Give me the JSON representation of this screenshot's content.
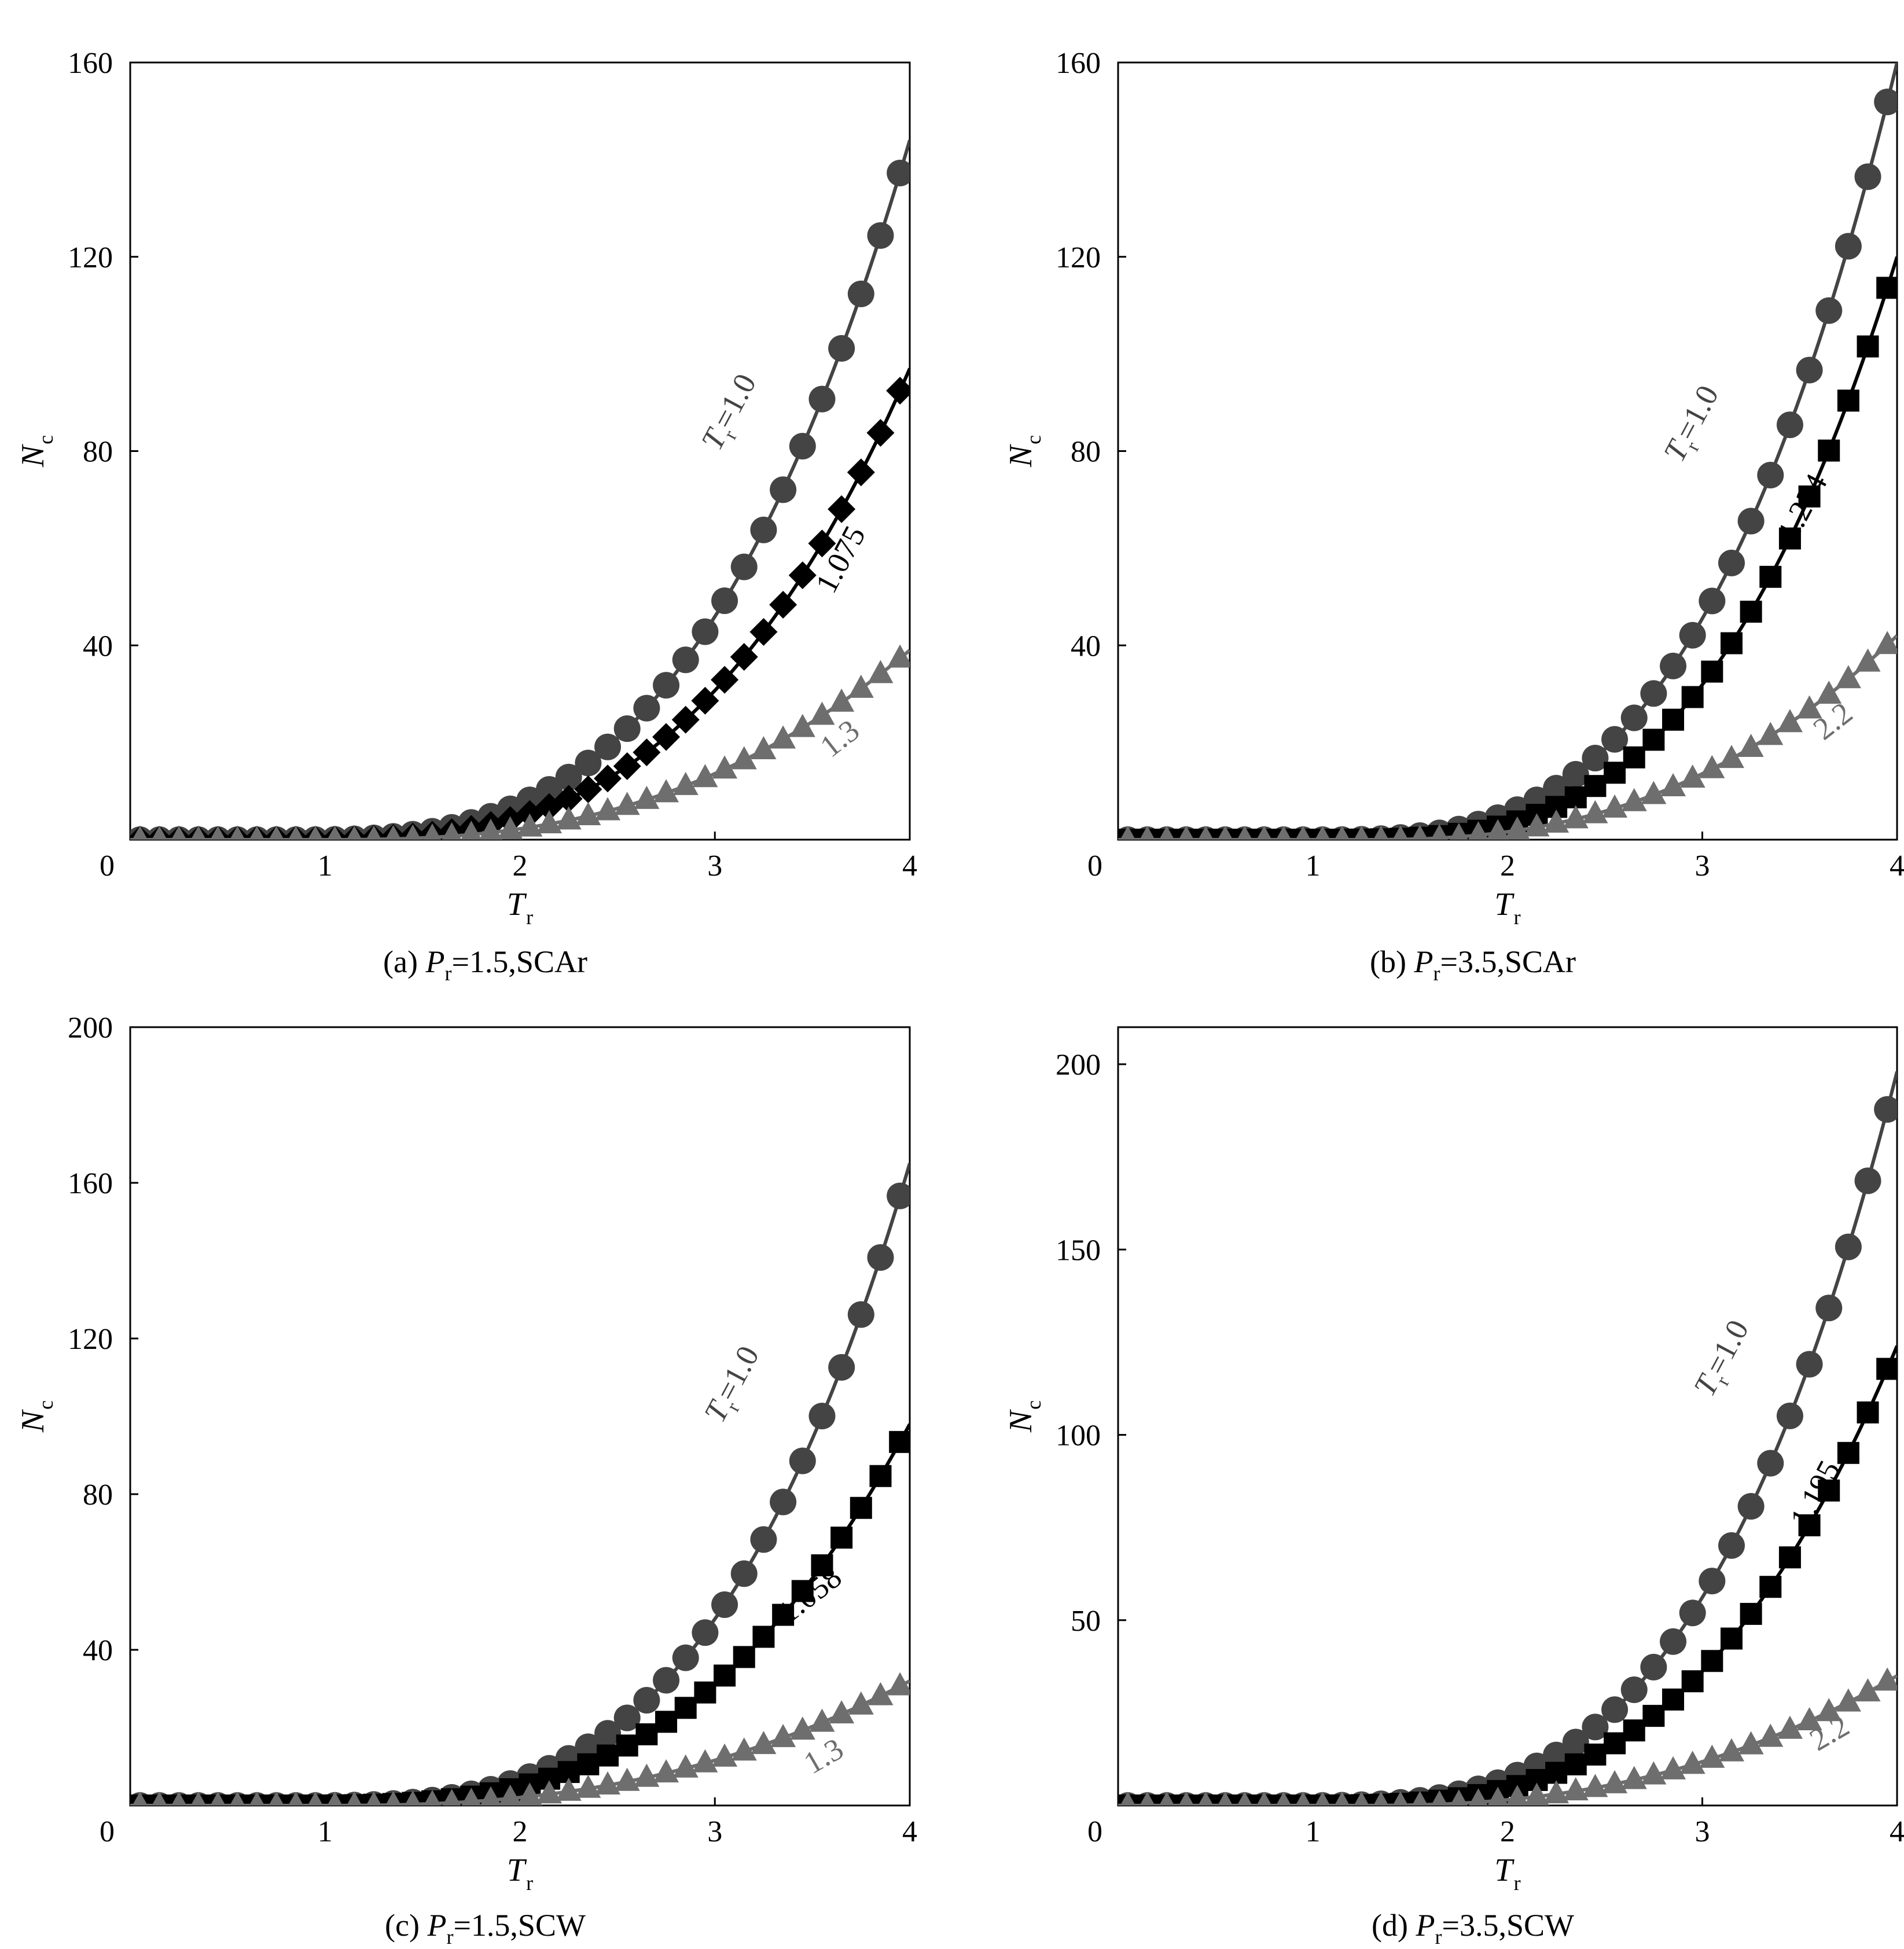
{
  "chart_data": [
    {
      "type": "line",
      "caption": {
        "prefix": "(a) ",
        "var": "P",
        "sub": "r",
        "rest": "=1.5,SCAr"
      },
      "xlabel": {
        "main": "T",
        "sub": "r"
      },
      "ylabel": {
        "main": "N",
        "sub": "c"
      },
      "xlim": [
        0,
        4
      ],
      "ylim": [
        0,
        160
      ],
      "xticks": [
        "0",
        "1",
        "2",
        "3",
        "4"
      ],
      "yticks": [
        {
          "v": 0,
          "label": "0"
        },
        {
          "v": 40,
          "label": "40"
        },
        {
          "v": 80,
          "label": "80"
        },
        {
          "v": 120,
          "label": "120"
        },
        {
          "v": 160,
          "label": "160"
        }
      ],
      "series": [
        {
          "label": "T",
          "label_sub": "r",
          "label_rest": "=1.0",
          "marker": "circle",
          "color": "#444444",
          "tr": 1.0,
          "curve": {
            "x0": 0.8,
            "a": 144,
            "p": 3.05
          }
        },
        {
          "label": "1.075",
          "marker": "diamond",
          "color": "#000000",
          "tr": 1.075,
          "curve": {
            "x0": 0.86,
            "a": 97,
            "p": 3.0
          }
        },
        {
          "label": "1.3",
          "marker": "triangle",
          "color": "#6e6e6e",
          "tr": 1.3,
          "curve": {
            "x0": 1.0,
            "a": 39,
            "p": 2.6
          }
        }
      ]
    },
    {
      "type": "line",
      "caption": {
        "prefix": "(b) ",
        "var": "P",
        "sub": "r",
        "rest": "=3.5,SCAr"
      },
      "xlabel": {
        "main": "T",
        "sub": "r"
      },
      "ylabel": {
        "main": "N",
        "sub": "c"
      },
      "xlim": [
        0,
        4
      ],
      "ylim": [
        0,
        160
      ],
      "xticks": [
        "0",
        "1",
        "2",
        "3",
        "4"
      ],
      "yticks": [
        {
          "v": 0,
          "label": "0"
        },
        {
          "v": 40,
          "label": "40"
        },
        {
          "v": 80,
          "label": "80"
        },
        {
          "v": 120,
          "label": "120"
        },
        {
          "v": 160,
          "label": "160"
        }
      ],
      "series": [
        {
          "label": "T",
          "label_sub": "r",
          "label_rest": "=1.0",
          "marker": "circle",
          "color": "#444444",
          "tr": 1.0,
          "curve": {
            "x0": 1.0,
            "a": 160,
            "p": 3.1
          }
        },
        {
          "label": "1.234",
          "marker": "square",
          "color": "#000000",
          "tr": 1.234,
          "curve": {
            "x0": 1.05,
            "a": 120,
            "p": 3.2
          }
        },
        {
          "label": "2.2",
          "marker": "triangle",
          "color": "#6e6e6e",
          "tr": 2.2,
          "curve": {
            "x0": 1.25,
            "a": 42,
            "p": 2.5
          }
        }
      ]
    },
    {
      "type": "line",
      "caption": {
        "prefix": "(c) ",
        "var": "P",
        "sub": "r",
        "rest": "=1.5,SCW"
      },
      "xlabel": {
        "main": "T",
        "sub": "r"
      },
      "ylabel": {
        "main": "N",
        "sub": "c"
      },
      "xlim": [
        0,
        4
      ],
      "ylim": [
        0,
        200
      ],
      "xticks": [
        "0",
        "1",
        "2",
        "3",
        "4"
      ],
      "yticks": [
        {
          "v": 0,
          "label": "0"
        },
        {
          "v": 40,
          "label": "40"
        },
        {
          "v": 80,
          "label": "80"
        },
        {
          "v": 120,
          "label": "120"
        },
        {
          "v": 160,
          "label": "160"
        },
        {
          "v": 200,
          "label": "200"
        }
      ],
      "series": [
        {
          "label": "T",
          "label_sub": "r",
          "label_rest": "=1.0",
          "marker": "circle",
          "color": "#444444",
          "tr": 1.0,
          "curve": {
            "x0": 0.8,
            "a": 165,
            "p": 3.3
          }
        },
        {
          "label": "1.058",
          "marker": "square",
          "color": "#000000",
          "tr": 1.058,
          "curve": {
            "x0": 0.85,
            "a": 98,
            "p": 3.0
          }
        },
        {
          "label": "1.3",
          "marker": "triangle",
          "color": "#6e6e6e",
          "tr": 1.3,
          "curve": {
            "x0": 1.0,
            "a": 32,
            "p": 2.5
          }
        }
      ]
    },
    {
      "type": "line",
      "caption": {
        "prefix": "(d) ",
        "var": "P",
        "sub": "r",
        "rest": "=3.5,SCW"
      },
      "xlabel": {
        "main": "T",
        "sub": "r"
      },
      "ylabel": {
        "main": "N",
        "sub": "c"
      },
      "xlim": [
        0,
        4
      ],
      "ylim": [
        0,
        210
      ],
      "xticks": [
        "0",
        "1",
        "2",
        "3",
        "4"
      ],
      "yticks": [
        {
          "v": 0,
          "label": "0"
        },
        {
          "v": 50,
          "label": "50"
        },
        {
          "v": 100,
          "label": "100"
        },
        {
          "v": 150,
          "label": "150"
        },
        {
          "v": 200,
          "label": "200"
        }
      ],
      "series": [
        {
          "label": "T",
          "label_sub": "r",
          "label_rest": "=1.0",
          "marker": "circle",
          "color": "#444444",
          "tr": 1.0,
          "curve": {
            "x0": 0.85,
            "a": 198,
            "p": 3.3
          }
        },
        {
          "label": "1.195",
          "marker": "square",
          "color": "#000000",
          "tr": 1.195,
          "curve": {
            "x0": 0.95,
            "a": 124,
            "p": 3.1
          }
        },
        {
          "label": "2.2",
          "marker": "triangle",
          "color": "#6e6e6e",
          "tr": 2.2,
          "curve": {
            "x0": 1.25,
            "a": 35,
            "p": 2.4
          }
        }
      ]
    }
  ]
}
